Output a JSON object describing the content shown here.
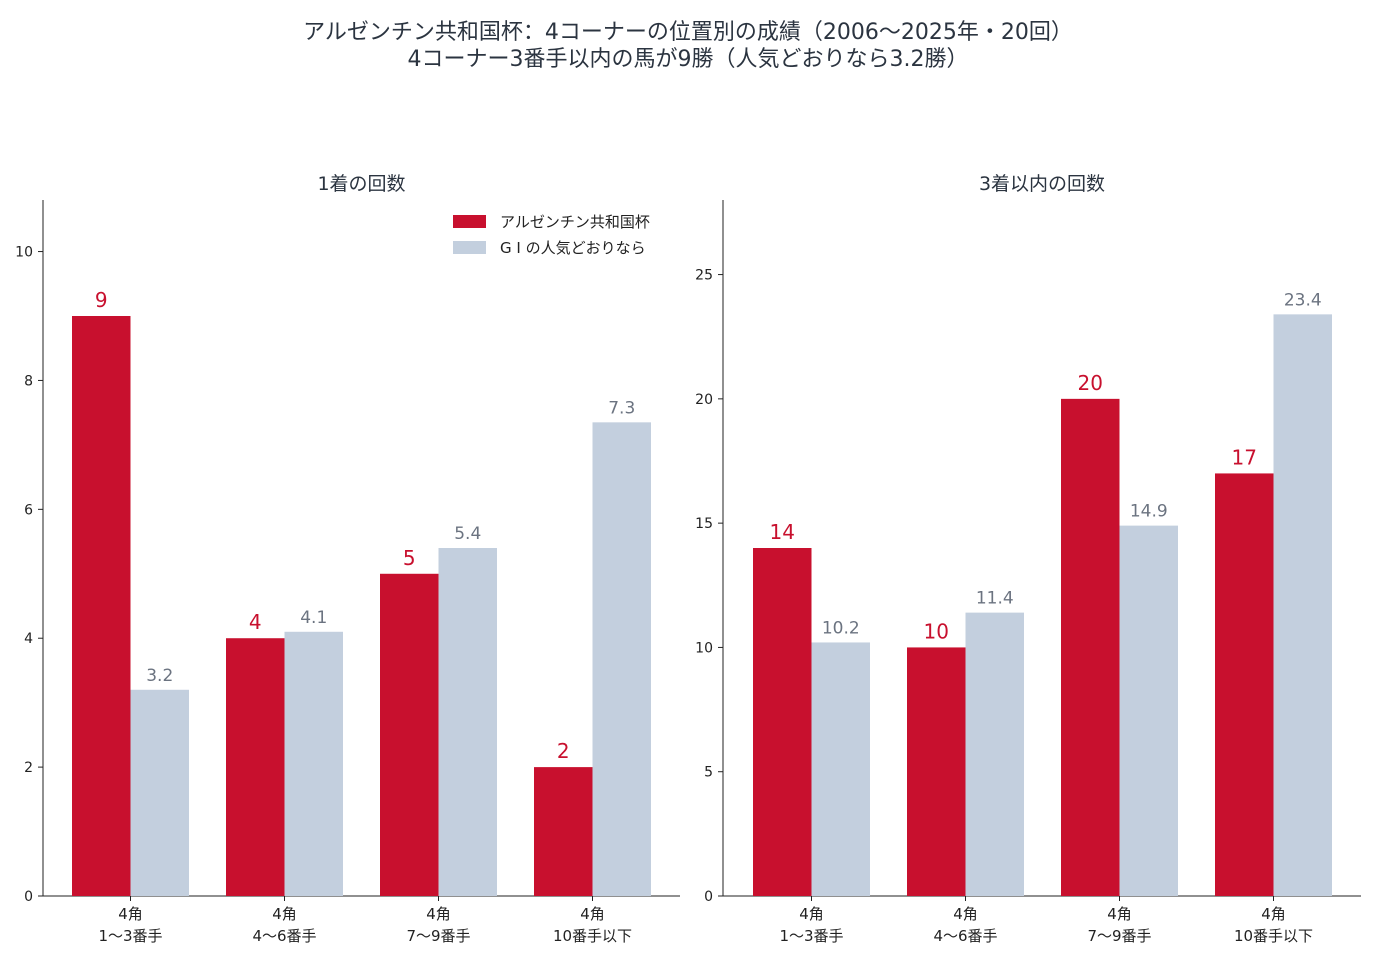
{
  "title_line1": "アルゼンチン共和国杯：4コーナーの位置別の成績（2006〜2025年・20回）",
  "title_line2": "4コーナー3番手以内の馬が9勝（人気どおりなら3.2勝）",
  "colors": {
    "actual": "#c8102e",
    "expected": "#c3cfde",
    "expected_label": "#6b7380"
  },
  "chart_data": [
    {
      "type": "bar",
      "title": "1着の回数",
      "categories": [
        [
          "4角",
          "1〜3番手"
        ],
        [
          "4角",
          "4〜6番手"
        ],
        [
          "4角",
          "7〜9番手"
        ],
        [
          "4角",
          "10番手以下"
        ]
      ],
      "ylim": [
        0,
        10.8
      ],
      "yticks": [
        0,
        2,
        4,
        6,
        8,
        10
      ],
      "legend": "top-right",
      "series": [
        {
          "name": "アルゼンチン共和国杯",
          "values": [
            9,
            4,
            5,
            2
          ],
          "labels": [
            "9",
            "4",
            "5",
            "2"
          ]
        },
        {
          "name": "G I の人気どおりなら",
          "values": [
            3.2,
            4.1,
            5.4,
            7.35
          ],
          "labels": [
            "3.2",
            "4.1",
            "5.4",
            "7.3"
          ]
        }
      ]
    },
    {
      "type": "bar",
      "title": "3着以内の回数",
      "categories": [
        [
          "4角",
          "1〜3番手"
        ],
        [
          "4角",
          "4〜6番手"
        ],
        [
          "4角",
          "7〜9番手"
        ],
        [
          "4角",
          "10番手以下"
        ]
      ],
      "ylim": [
        0,
        28
      ],
      "yticks": [
        0,
        5,
        10,
        15,
        20,
        25
      ],
      "series": [
        {
          "name": "アルゼンチン共和国杯",
          "values": [
            14,
            10,
            20,
            17
          ],
          "labels": [
            "14",
            "10",
            "20",
            "17"
          ]
        },
        {
          "name": "G I の人気どおりなら",
          "values": [
            10.2,
            11.4,
            14.9,
            23.4
          ],
          "labels": [
            "10.2",
            "11.4",
            "14.9",
            "23.4"
          ]
        }
      ]
    }
  ]
}
